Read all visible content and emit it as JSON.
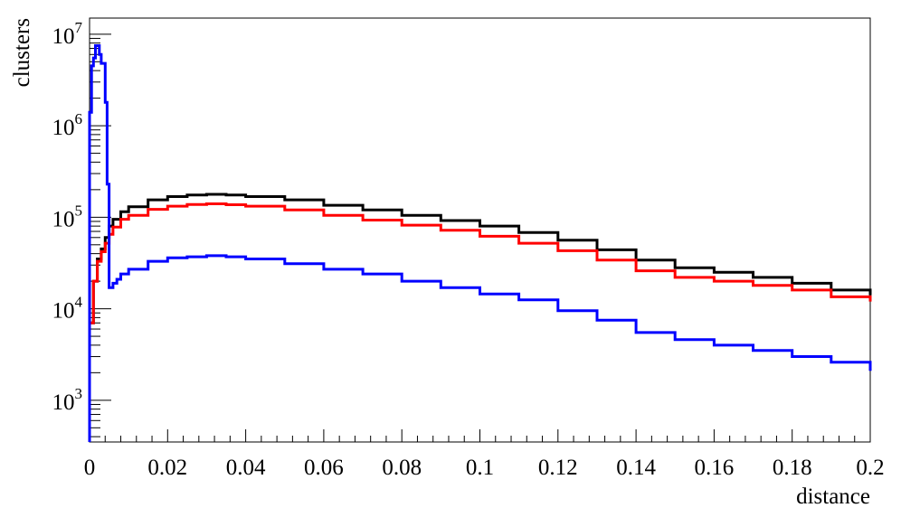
{
  "chart_data": {
    "type": "line",
    "style": "step-histogram",
    "xlabel": "distance",
    "ylabel": "clusters",
    "xlim": [
      0,
      0.2
    ],
    "ylim": [
      350,
      15000000
    ],
    "log_y": true,
    "grid": false,
    "legend": "none",
    "x_ticks": [
      0,
      0.02,
      0.04,
      0.06,
      0.08,
      0.1,
      0.12,
      0.14,
      0.16,
      0.18,
      0.2
    ],
    "x_tick_labels": [
      "0",
      "0.02",
      "0.04",
      "0.06",
      "0.08",
      "0.1",
      "0.12",
      "0.14",
      "0.16",
      "0.18",
      "0.2"
    ],
    "y_ticks": [
      {
        "base": "10",
        "exp": "3",
        "value": 1000
      },
      {
        "base": "10",
        "exp": "4",
        "value": 10000
      },
      {
        "base": "10",
        "exp": "5",
        "value": 100000
      },
      {
        "base": "10",
        "exp": "6",
        "value": 1000000
      },
      {
        "base": "10",
        "exp": "7",
        "value": 10000000
      }
    ],
    "series": [
      {
        "color": "#000000",
        "points": [
          [
            0,
            7000
          ],
          [
            0.001,
            20000
          ],
          [
            0.002,
            35000
          ],
          [
            0.003,
            45000
          ],
          [
            0.004,
            60000
          ],
          [
            0.005,
            80000
          ],
          [
            0.006,
            95000
          ],
          [
            0.008,
            115000
          ],
          [
            0.01,
            130000
          ],
          [
            0.015,
            155000
          ],
          [
            0.02,
            168000
          ],
          [
            0.025,
            175000
          ],
          [
            0.03,
            178000
          ],
          [
            0.035,
            175000
          ],
          [
            0.04,
            168000
          ],
          [
            0.05,
            155000
          ],
          [
            0.06,
            135000
          ],
          [
            0.07,
            120000
          ],
          [
            0.08,
            105000
          ],
          [
            0.09,
            92000
          ],
          [
            0.1,
            80000
          ],
          [
            0.11,
            68000
          ],
          [
            0.12,
            56000
          ],
          [
            0.13,
            44000
          ],
          [
            0.14,
            34000
          ],
          [
            0.15,
            28000
          ],
          [
            0.16,
            25000
          ],
          [
            0.17,
            22000
          ],
          [
            0.18,
            19000
          ],
          [
            0.19,
            16000
          ],
          [
            0.2,
            14000
          ]
        ]
      },
      {
        "color": "#ff0000",
        "points": [
          [
            0,
            7000
          ],
          [
            0.001,
            20000
          ],
          [
            0.002,
            33000
          ],
          [
            0.003,
            42000
          ],
          [
            0.004,
            52000
          ],
          [
            0.005,
            65000
          ],
          [
            0.006,
            78000
          ],
          [
            0.008,
            95000
          ],
          [
            0.01,
            105000
          ],
          [
            0.015,
            122000
          ],
          [
            0.02,
            132000
          ],
          [
            0.025,
            138000
          ],
          [
            0.03,
            140000
          ],
          [
            0.035,
            137000
          ],
          [
            0.04,
            132000
          ],
          [
            0.05,
            120000
          ],
          [
            0.06,
            105000
          ],
          [
            0.07,
            93000
          ],
          [
            0.08,
            82000
          ],
          [
            0.09,
            72000
          ],
          [
            0.1,
            62000
          ],
          [
            0.11,
            52000
          ],
          [
            0.12,
            43000
          ],
          [
            0.13,
            34000
          ],
          [
            0.14,
            26000
          ],
          [
            0.15,
            22000
          ],
          [
            0.16,
            20000
          ],
          [
            0.17,
            18000
          ],
          [
            0.18,
            16000
          ],
          [
            0.19,
            13500
          ],
          [
            0.2,
            12000
          ]
        ]
      },
      {
        "color": "#0000ff",
        "points": [
          [
            0,
            1400000
          ],
          [
            0.0005,
            4500000
          ],
          [
            0.001,
            5500000
          ],
          [
            0.0015,
            7500000
          ],
          [
            0.002,
            7500000
          ],
          [
            0.0025,
            6000000
          ],
          [
            0.003,
            4800000
          ],
          [
            0.004,
            1800000
          ],
          [
            0.0045,
            230000
          ],
          [
            0.005,
            17000
          ],
          [
            0.006,
            19000
          ],
          [
            0.007,
            21000
          ],
          [
            0.008,
            24000
          ],
          [
            0.01,
            27000
          ],
          [
            0.015,
            33000
          ],
          [
            0.02,
            36000
          ],
          [
            0.025,
            37000
          ],
          [
            0.03,
            38000
          ],
          [
            0.035,
            37000
          ],
          [
            0.04,
            35000
          ],
          [
            0.05,
            31000
          ],
          [
            0.06,
            27000
          ],
          [
            0.07,
            24000
          ],
          [
            0.08,
            20000
          ],
          [
            0.09,
            17000
          ],
          [
            0.1,
            14500
          ],
          [
            0.11,
            12500
          ],
          [
            0.12,
            9500
          ],
          [
            0.13,
            7500
          ],
          [
            0.14,
            5500
          ],
          [
            0.15,
            4600
          ],
          [
            0.16,
            4000
          ],
          [
            0.17,
            3500
          ],
          [
            0.18,
            3000
          ],
          [
            0.19,
            2600
          ],
          [
            0.2,
            2100
          ]
        ]
      }
    ]
  }
}
